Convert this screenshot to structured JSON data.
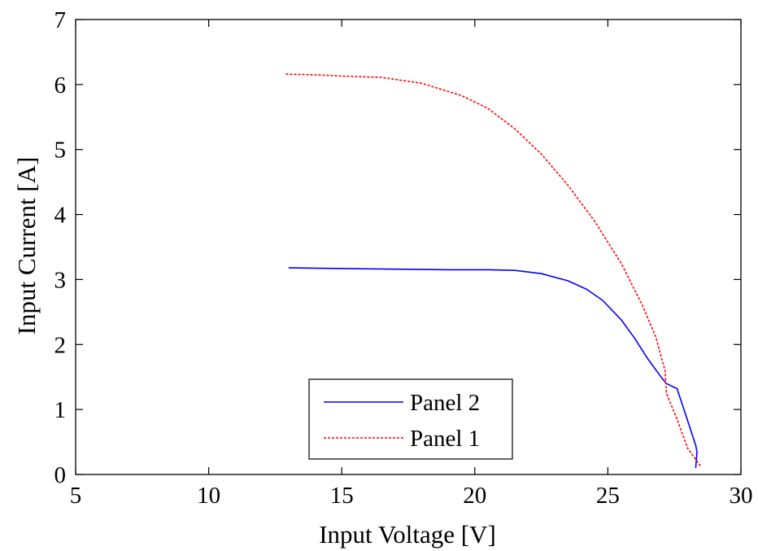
{
  "chart_data": {
    "type": "line",
    "title": "",
    "xlabel": "Input Voltage [V]",
    "ylabel": "Input Current [A]",
    "xlim": [
      5,
      30
    ],
    "ylim": [
      0,
      7
    ],
    "xticks": [
      "5",
      "10",
      "15",
      "20",
      "25",
      "30"
    ],
    "yticks": [
      "0",
      "1",
      "2",
      "3",
      "4",
      "5",
      "6",
      "7"
    ],
    "grid": false,
    "legend_position": "bottom-center",
    "series": [
      {
        "name": "Panel 2",
        "color": "#0000ff",
        "style": "solid",
        "x": [
          13.0,
          15.0,
          17.0,
          19.0,
          20.5,
          21.5,
          22.5,
          23.5,
          24.2,
          24.8,
          25.5,
          26.0,
          26.5,
          27.0,
          27.2,
          27.6,
          27.9,
          28.3,
          28.35,
          28.3
        ],
        "y": [
          3.18,
          3.17,
          3.16,
          3.15,
          3.15,
          3.14,
          3.09,
          2.98,
          2.85,
          2.68,
          2.38,
          2.1,
          1.78,
          1.5,
          1.4,
          1.32,
          0.95,
          0.45,
          0.35,
          0.1
        ]
      },
      {
        "name": "Panel 1",
        "color": "#ff0000",
        "style": "dashed",
        "x": [
          12.9,
          14.0,
          15.0,
          16.5,
          18.0,
          19.5,
          20.5,
          21.5,
          22.5,
          23.5,
          24.5,
          25.5,
          26.3,
          26.8,
          27.0,
          27.15,
          27.2,
          27.6,
          28.0,
          28.5
        ],
        "y": [
          6.16,
          6.15,
          6.13,
          6.11,
          6.02,
          5.83,
          5.63,
          5.32,
          4.93,
          4.45,
          3.9,
          3.25,
          2.6,
          2.12,
          1.82,
          1.6,
          1.25,
          0.85,
          0.4,
          0.12
        ]
      }
    ]
  }
}
